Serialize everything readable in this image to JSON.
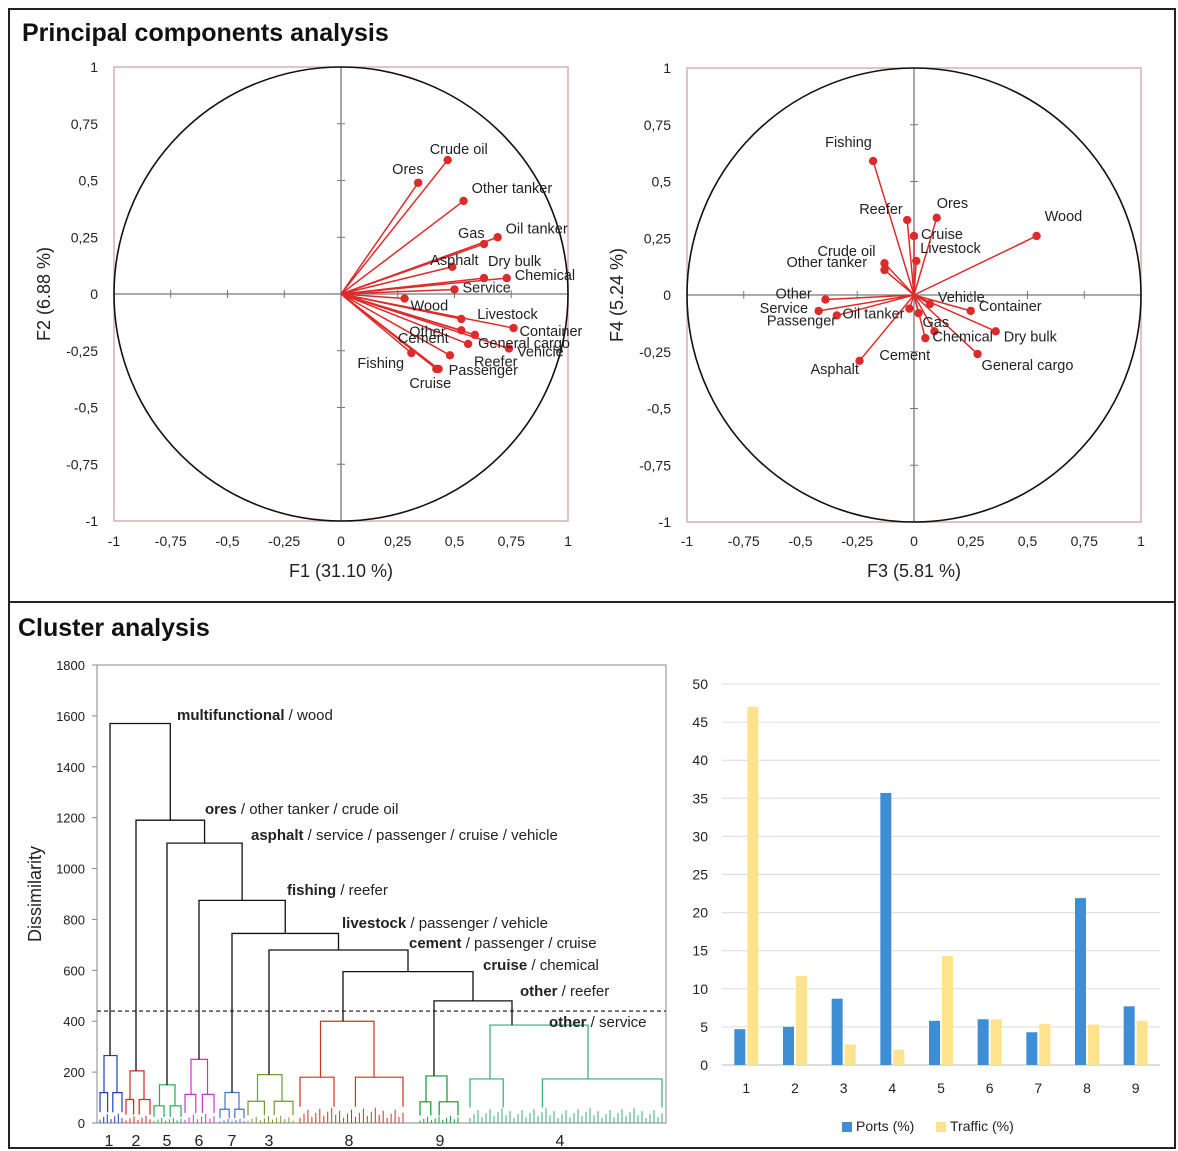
{
  "pca_title": "Principal components analysis",
  "cluster_title": "Cluster analysis",
  "colors": {
    "vector": "#dd2b2b",
    "ports": "#3d8ed4",
    "traffic": "#fde38e",
    "frame": "#222222"
  },
  "chart_data": [
    {
      "type": "scatter",
      "subtype": "correlation-circle",
      "xlabel": "F1 (31.10 %)",
      "ylabel": "F2 (6.88 %)",
      "xlim": [
        -1,
        1
      ],
      "ylim": [
        -1,
        1
      ],
      "ticks": [
        -1,
        -0.75,
        -0.5,
        -0.25,
        0,
        0.25,
        0.5,
        0.75,
        1
      ],
      "tick_labels": [
        "-1",
        "-0,75",
        "-0,5",
        "-0,25",
        "0",
        "0,25",
        "0,5",
        "0,75",
        "1"
      ],
      "points": [
        {
          "label": "Crude oil",
          "x": 0.47,
          "y": 0.59
        },
        {
          "label": "Ores",
          "x": 0.34,
          "y": 0.49
        },
        {
          "label": "Other tanker",
          "x": 0.54,
          "y": 0.41
        },
        {
          "label": "Oil tanker",
          "x": 0.69,
          "y": 0.25
        },
        {
          "label": "Gas",
          "x": 0.63,
          "y": 0.22
        },
        {
          "label": "Asphalt",
          "x": 0.49,
          "y": 0.12
        },
        {
          "label": "Dry bulk",
          "x": 0.63,
          "y": 0.07
        },
        {
          "label": "Chemical",
          "x": 0.73,
          "y": 0.07
        },
        {
          "label": "Service",
          "x": 0.5,
          "y": 0.02
        },
        {
          "label": "Wood",
          "x": 0.28,
          "y": -0.02
        },
        {
          "label": "Livestock",
          "x": 0.53,
          "y": -0.11
        },
        {
          "label": "Other",
          "x": 0.53,
          "y": -0.16
        },
        {
          "label": "Container",
          "x": 0.76,
          "y": -0.15
        },
        {
          "label": "Cement",
          "x": 0.59,
          "y": -0.18
        },
        {
          "label": "General cargo",
          "x": 0.56,
          "y": -0.22
        },
        {
          "label": "Vehicle",
          "x": 0.74,
          "y": -0.24
        },
        {
          "label": "Reefer",
          "x": 0.48,
          "y": -0.27
        },
        {
          "label": "Fishing",
          "x": 0.31,
          "y": -0.26
        },
        {
          "label": "Passenger",
          "x": 0.43,
          "y": -0.33
        },
        {
          "label": "Cruise",
          "x": 0.42,
          "y": -0.33
        }
      ]
    },
    {
      "type": "scatter",
      "subtype": "correlation-circle",
      "xlabel": "F3 (5.81 %)",
      "ylabel": "F4 (5.24 %)",
      "xlim": [
        -1,
        1
      ],
      "ylim": [
        -1,
        1
      ],
      "ticks": [
        -1,
        -0.75,
        -0.5,
        -0.25,
        0,
        0.25,
        0.5,
        0.75,
        1
      ],
      "tick_labels": [
        "-1",
        "-0,75",
        "-0,5",
        "-0,25",
        "0",
        "0,25",
        "0,5",
        "0,75",
        "1"
      ],
      "points": [
        {
          "label": "Fishing",
          "x": -0.18,
          "y": 0.59
        },
        {
          "label": "Reefer",
          "x": -0.03,
          "y": 0.33
        },
        {
          "label": "Ores",
          "x": 0.1,
          "y": 0.34
        },
        {
          "label": "Cruise",
          "x": 0.0,
          "y": 0.26
        },
        {
          "label": "Wood",
          "x": 0.54,
          "y": 0.26
        },
        {
          "label": "Livestock",
          "x": 0.01,
          "y": 0.15
        },
        {
          "label": "Crude oil",
          "x": -0.13,
          "y": 0.14
        },
        {
          "label": "Other tanker",
          "x": -0.13,
          "y": 0.11
        },
        {
          "label": "Other",
          "x": -0.39,
          "y": -0.02
        },
        {
          "label": "Service",
          "x": -0.42,
          "y": -0.07
        },
        {
          "label": "Passenger",
          "x": -0.34,
          "y": -0.09
        },
        {
          "label": "Oil tanker",
          "x": -0.02,
          "y": -0.06
        },
        {
          "label": "Gas",
          "x": 0.02,
          "y": -0.08
        },
        {
          "label": "Container",
          "x": 0.25,
          "y": -0.07
        },
        {
          "label": "Vehicle",
          "x": 0.07,
          "y": -0.04
        },
        {
          "label": "Chemical",
          "x": 0.09,
          "y": -0.16
        },
        {
          "label": "Cement",
          "x": 0.05,
          "y": -0.19
        },
        {
          "label": "Dry bulk",
          "x": 0.36,
          "y": -0.16
        },
        {
          "label": "General cargo",
          "x": 0.28,
          "y": -0.26
        },
        {
          "label": "Asphalt",
          "x": -0.24,
          "y": -0.29
        }
      ]
    },
    {
      "type": "dendrogram",
      "ylabel": "Dissimilarity",
      "ylim": [
        0,
        1800
      ],
      "yticks": [
        0,
        200,
        400,
        600,
        800,
        1000,
        1200,
        1400,
        1600,
        1800
      ],
      "cut_level": 440,
      "leaf_labels": [
        "1",
        "2",
        "5",
        "6",
        "7",
        "3",
        "8",
        "9",
        "4"
      ],
      "cluster_colors": [
        "#1f3fbf",
        "#dd2222",
        "#1faa55",
        "#cc33cc",
        "#4a6fc9",
        "#6f9c2a",
        "#cc3322",
        "#119933",
        "#33aa77"
      ],
      "cluster_heights": [
        265,
        205,
        150,
        250,
        120,
        190,
        400,
        185,
        385
      ],
      "merge_heights": [
        1570,
        1190,
        1100,
        875,
        745,
        680,
        595,
        480
      ],
      "annotations": [
        {
          "bold": "multifunctional",
          "rest": " / wood"
        },
        {
          "bold": "ores",
          "rest": " / other tanker / crude oil"
        },
        {
          "bold": "asphalt",
          "rest": " / service / passenger / cruise / vehicle"
        },
        {
          "bold": "fishing",
          "rest": " / reefer"
        },
        {
          "bold": "livestock",
          "rest": " / passenger / vehicle"
        },
        {
          "bold": "cement",
          "rest": " / passenger / cruise"
        },
        {
          "bold": "cruise",
          "rest": " / chemical"
        },
        {
          "bold": "other",
          "rest": " / reefer"
        },
        {
          "bold": "other",
          "rest": " / service"
        }
      ]
    },
    {
      "type": "bar",
      "categories": [
        "1",
        "2",
        "3",
        "4",
        "5",
        "6",
        "7",
        "8",
        "9"
      ],
      "ylim": [
        0,
        50
      ],
      "yticks": [
        0,
        5,
        10,
        15,
        20,
        25,
        30,
        35,
        40,
        45,
        50
      ],
      "series": [
        {
          "name": "Ports (%)",
          "values": [
            4.7,
            5.0,
            8.7,
            35.7,
            5.8,
            6.0,
            4.3,
            21.9,
            7.7
          ]
        },
        {
          "name": "Traffic (%)",
          "values": [
            47.0,
            11.7,
            2.7,
            2.0,
            14.3,
            6.0,
            5.4,
            5.3,
            5.8
          ]
        }
      ],
      "legend_position": "bottom",
      "grid": true
    }
  ]
}
